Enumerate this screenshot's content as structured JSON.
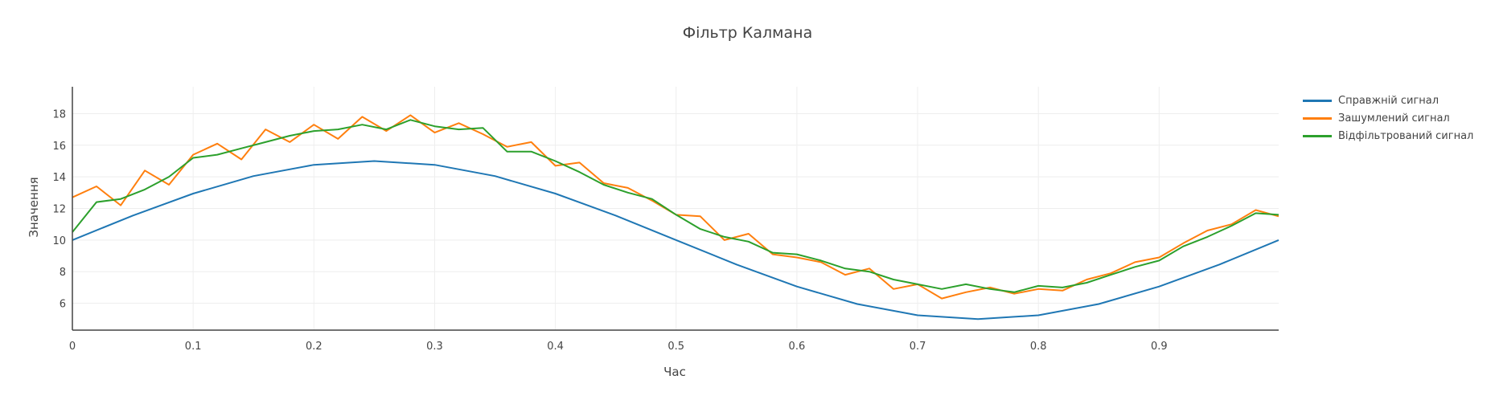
{
  "chart_data": {
    "type": "line",
    "title": "Фільтр Калмана",
    "xlabel": "Час",
    "ylabel": "Значення",
    "xlim": [
      0,
      0.999
    ],
    "ylim": [
      4.3,
      19.7
    ],
    "x_ticks": [
      0,
      0.1,
      0.2,
      0.3,
      0.4,
      0.5,
      0.6,
      0.7,
      0.8,
      0.9
    ],
    "x_tick_labels": [
      "0",
      "0.1",
      "0.2",
      "0.3",
      "0.4",
      "0.5",
      "0.6",
      "0.7",
      "0.8",
      "0.9"
    ],
    "y_ticks": [
      6,
      8,
      10,
      12,
      14,
      16,
      18
    ],
    "y_tick_labels": [
      "6",
      "8",
      "10",
      "12",
      "14",
      "16",
      "18"
    ],
    "grid": true,
    "legend_position": "top-right",
    "series": [
      {
        "name": "Справжній сигнал",
        "color": "#1f77b4",
        "x": [
          0,
          0.05,
          0.1,
          0.15,
          0.2,
          0.25,
          0.3,
          0.35,
          0.4,
          0.45,
          0.5,
          0.55,
          0.6,
          0.65,
          0.7,
          0.75,
          0.8,
          0.85,
          0.9,
          0.95,
          0.999
        ],
        "y": [
          10.0,
          11.55,
          12.94,
          14.05,
          14.76,
          15.0,
          14.76,
          14.05,
          12.94,
          11.55,
          10.0,
          8.45,
          7.06,
          5.95,
          5.24,
          5.0,
          5.24,
          5.95,
          7.06,
          8.45,
          10.0
        ]
      },
      {
        "name": "Зашумлений сигнал",
        "color": "#ff7f0e",
        "x": [
          0,
          0.02,
          0.04,
          0.06,
          0.08,
          0.1,
          0.12,
          0.14,
          0.16,
          0.18,
          0.2,
          0.22,
          0.24,
          0.26,
          0.28,
          0.3,
          0.32,
          0.34,
          0.36,
          0.38,
          0.4,
          0.42,
          0.44,
          0.46,
          0.48,
          0.5,
          0.52,
          0.54,
          0.56,
          0.58,
          0.6,
          0.62,
          0.64,
          0.66,
          0.68,
          0.7,
          0.72,
          0.74,
          0.76,
          0.78,
          0.8,
          0.82,
          0.84,
          0.86,
          0.88,
          0.9,
          0.92,
          0.94,
          0.96,
          0.98,
          0.999
        ],
        "y": [
          12.7,
          13.4,
          12.2,
          14.4,
          13.5,
          15.4,
          16.1,
          15.1,
          17.0,
          16.2,
          17.3,
          16.4,
          17.8,
          16.9,
          17.9,
          16.8,
          17.4,
          16.7,
          15.9,
          16.2,
          14.7,
          14.9,
          13.6,
          13.3,
          12.5,
          11.6,
          11.5,
          10.0,
          10.4,
          9.1,
          8.9,
          8.6,
          7.8,
          8.2,
          6.9,
          7.2,
          6.3,
          6.7,
          7.0,
          6.6,
          6.9,
          6.8,
          7.5,
          7.9,
          8.6,
          8.9,
          9.8,
          10.6,
          11.0,
          11.9,
          11.5
        ]
      },
      {
        "name": "Відфільтрований сигнал",
        "color": "#2ca02c",
        "x": [
          0,
          0.02,
          0.04,
          0.06,
          0.08,
          0.1,
          0.12,
          0.14,
          0.16,
          0.18,
          0.2,
          0.22,
          0.24,
          0.26,
          0.28,
          0.3,
          0.32,
          0.34,
          0.36,
          0.38,
          0.4,
          0.42,
          0.44,
          0.46,
          0.48,
          0.5,
          0.52,
          0.54,
          0.56,
          0.58,
          0.6,
          0.62,
          0.64,
          0.66,
          0.68,
          0.7,
          0.72,
          0.74,
          0.76,
          0.78,
          0.8,
          0.82,
          0.84,
          0.86,
          0.88,
          0.9,
          0.92,
          0.94,
          0.96,
          0.98,
          0.999
        ],
        "y": [
          10.5,
          12.4,
          12.6,
          13.2,
          14.0,
          15.2,
          15.4,
          15.8,
          16.2,
          16.6,
          16.9,
          17.0,
          17.3,
          17.0,
          17.6,
          17.2,
          17.0,
          17.1,
          15.6,
          15.6,
          15.0,
          14.3,
          13.5,
          13.0,
          12.6,
          11.6,
          10.7,
          10.2,
          9.9,
          9.2,
          9.1,
          8.7,
          8.2,
          8.0,
          7.5,
          7.2,
          6.9,
          7.2,
          6.9,
          6.7,
          7.1,
          7.0,
          7.3,
          7.8,
          8.3,
          8.7,
          9.6,
          10.2,
          10.9,
          11.7,
          11.6
        ]
      }
    ]
  }
}
